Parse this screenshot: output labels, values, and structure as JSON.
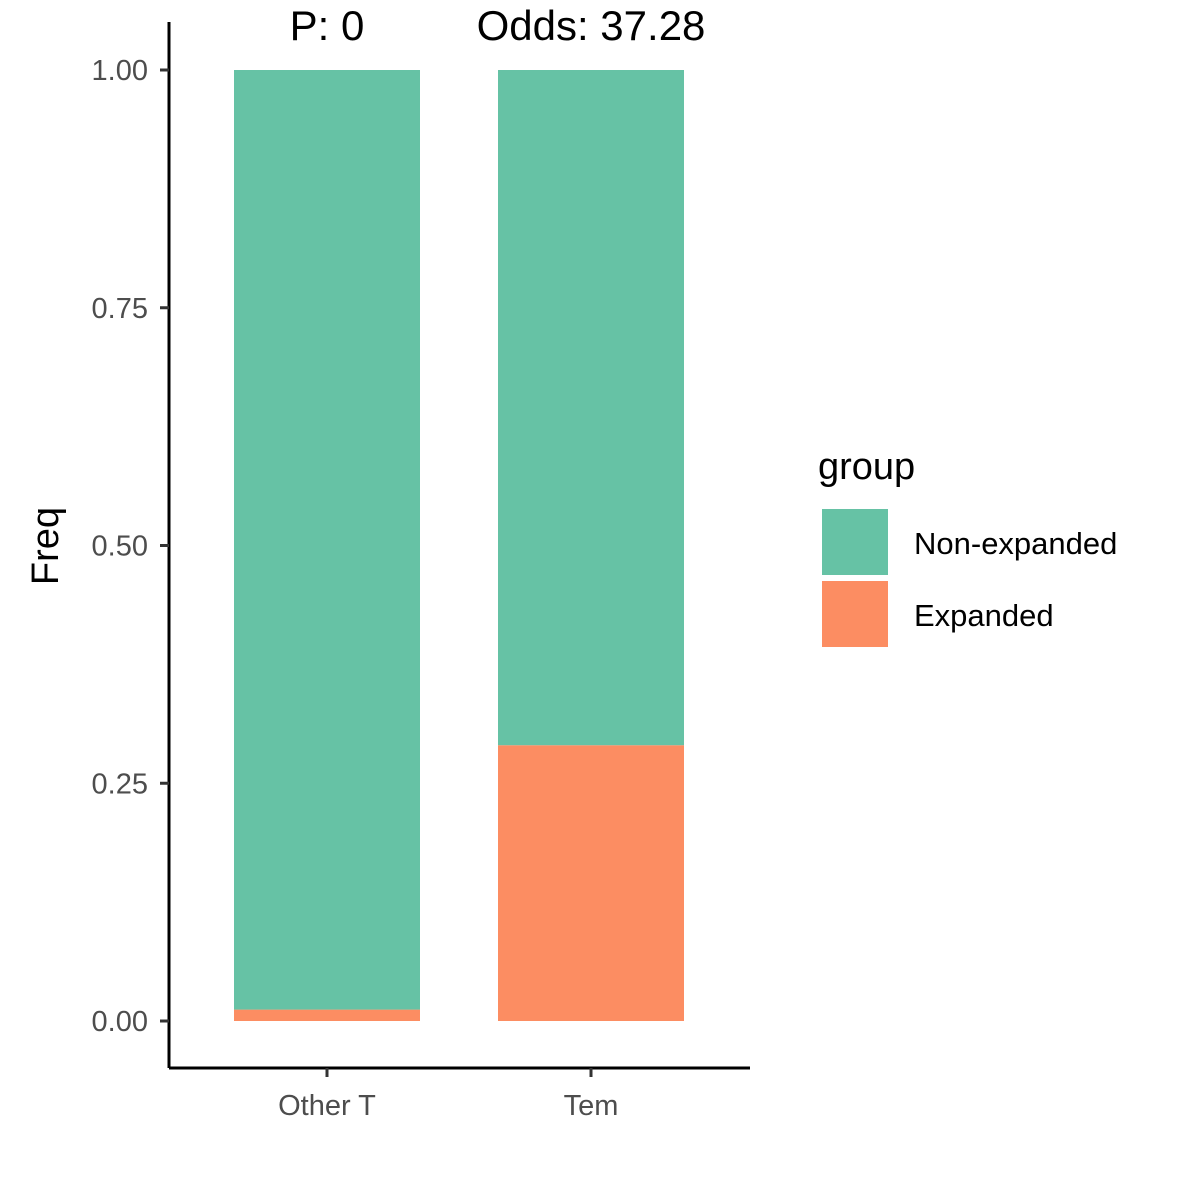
{
  "chart_data": {
    "type": "bar",
    "stacked": true,
    "categories": [
      "Other T",
      "Tem"
    ],
    "series": [
      {
        "name": "Expanded",
        "color": "#fc8d62",
        "values": [
          0.012,
          0.29
        ]
      },
      {
        "name": "Non-expanded",
        "color": "#66c2a5",
        "values": [
          0.988,
          0.71
        ]
      }
    ],
    "ylabel": "Freq",
    "xlabel": "",
    "ylim": [
      0,
      1
    ],
    "yticks": [
      "0.00",
      "0.25",
      "0.50",
      "0.75",
      "1.00"
    ],
    "annotations": [
      "P: 0",
      "Odds: 37.28"
    ],
    "grid": false,
    "legend": {
      "title": "group",
      "position": "right",
      "items": [
        {
          "label": "Non-expanded",
          "color": "#66c2a5"
        },
        {
          "label": "Expanded",
          "color": "#fc8d62"
        }
      ]
    }
  }
}
